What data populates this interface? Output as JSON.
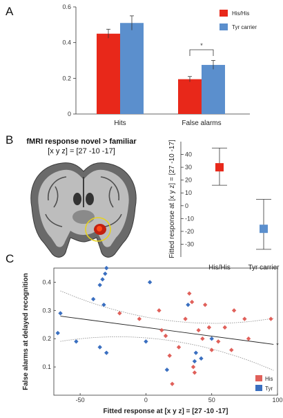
{
  "panels": {
    "a": "A",
    "b": "B",
    "c": "C"
  },
  "colors": {
    "his": "#e8281a",
    "tyr": "#5b8fcd",
    "his_scatter": "#e0605a",
    "tyr_scatter": "#3a6fc0"
  },
  "chart_data": [
    {
      "type": "bar",
      "panel": "A",
      "categories": [
        "Hits",
        "False alarms"
      ],
      "series": [
        {
          "name": "His/His",
          "values": [
            0.45,
            0.195
          ],
          "errors": [
            0.025,
            0.015
          ]
        },
        {
          "name": "Tyr carrier",
          "values": [
            0.51,
            0.275
          ],
          "errors": [
            0.04,
            0.025
          ]
        }
      ],
      "ylim": [
        0,
        0.6
      ],
      "yticks": [
        "0",
        "0.2",
        "0.4",
        "0.6"
      ],
      "annotation": "*",
      "legend_position": "top-right"
    },
    {
      "type": "scatter",
      "panel": "B",
      "title": "fMRI response novel > familiar",
      "subtitle": "[x y z] = [27 -10 -17]",
      "ylabel": "Fitted response at [x y z] = [27 -10 -17]",
      "categories": [
        "His/His",
        "Tyr carrier"
      ],
      "series": [
        {
          "name": "His/His",
          "mean": 30,
          "err_low": 16,
          "err_high": 45
        },
        {
          "name": "Tyr carrier",
          "mean": -18,
          "err_low": -34,
          "err_high": 5
        }
      ],
      "ylim": [
        -40,
        50
      ],
      "yticks": [
        "-30",
        "-20",
        "-10",
        "0",
        "10",
        "20",
        "30",
        "40"
      ]
    },
    {
      "type": "scatter",
      "panel": "C",
      "xlabel": "Fitted response at [x y z] = [27 -10 -17]",
      "ylabel": "False alarms  at delayed recognition",
      "xlim": [
        -70,
        100
      ],
      "ylim": [
        0,
        0.45
      ],
      "xticks": [
        "-50",
        "0",
        "50",
        "100"
      ],
      "yticks": [
        "0.1",
        "0.2",
        "0.3",
        "0.4"
      ],
      "fit": {
        "x": [
          -65,
          97
        ],
        "y": [
          0.28,
          0.18
        ],
        "annotation": "*"
      },
      "series": [
        {
          "name": "His",
          "points": [
            [
              -20,
              0.29
            ],
            [
              -5,
              0.27
            ],
            [
              10,
              0.3
            ],
            [
              12,
              0.23
            ],
            [
              15,
              0.21
            ],
            [
              18,
              0.14
            ],
            [
              20,
              0.04
            ],
            [
              25,
              0.17
            ],
            [
              30,
              0.27
            ],
            [
              33,
              0.36
            ],
            [
              35,
              0.33
            ],
            [
              36,
              0.1
            ],
            [
              37,
              0.08
            ],
            [
              40,
              0.23
            ],
            [
              43,
              0.2
            ],
            [
              45,
              0.32
            ],
            [
              48,
              0.24
            ],
            [
              50,
              0.16
            ],
            [
              55,
              0.19
            ],
            [
              60,
              0.24
            ],
            [
              65,
              0.16
            ],
            [
              67,
              0.3
            ],
            [
              75,
              0.27
            ],
            [
              78,
              0.2
            ],
            [
              95,
              0.27
            ]
          ]
        },
        {
          "name": "Tyr",
          "points": [
            [
              -65,
              0.29
            ],
            [
              -67,
              0.22
            ],
            [
              -53,
              0.19
            ],
            [
              -40,
              0.34
            ],
            [
              -35,
              0.39
            ],
            [
              -33,
              0.41
            ],
            [
              -31,
              0.43
            ],
            [
              -30,
              0.45
            ],
            [
              -32,
              0.32
            ],
            [
              -35,
              0.17
            ],
            [
              -30,
              0.15
            ],
            [
              0,
              0.19
            ],
            [
              3,
              0.4
            ],
            [
              16,
              0.09
            ],
            [
              32,
              0.32
            ],
            [
              37,
              0.12
            ],
            [
              38,
              0.15
            ],
            [
              42,
              0.13
            ],
            [
              50,
              0.2
            ]
          ]
        }
      ],
      "legend_position": "bottom-right"
    }
  ]
}
